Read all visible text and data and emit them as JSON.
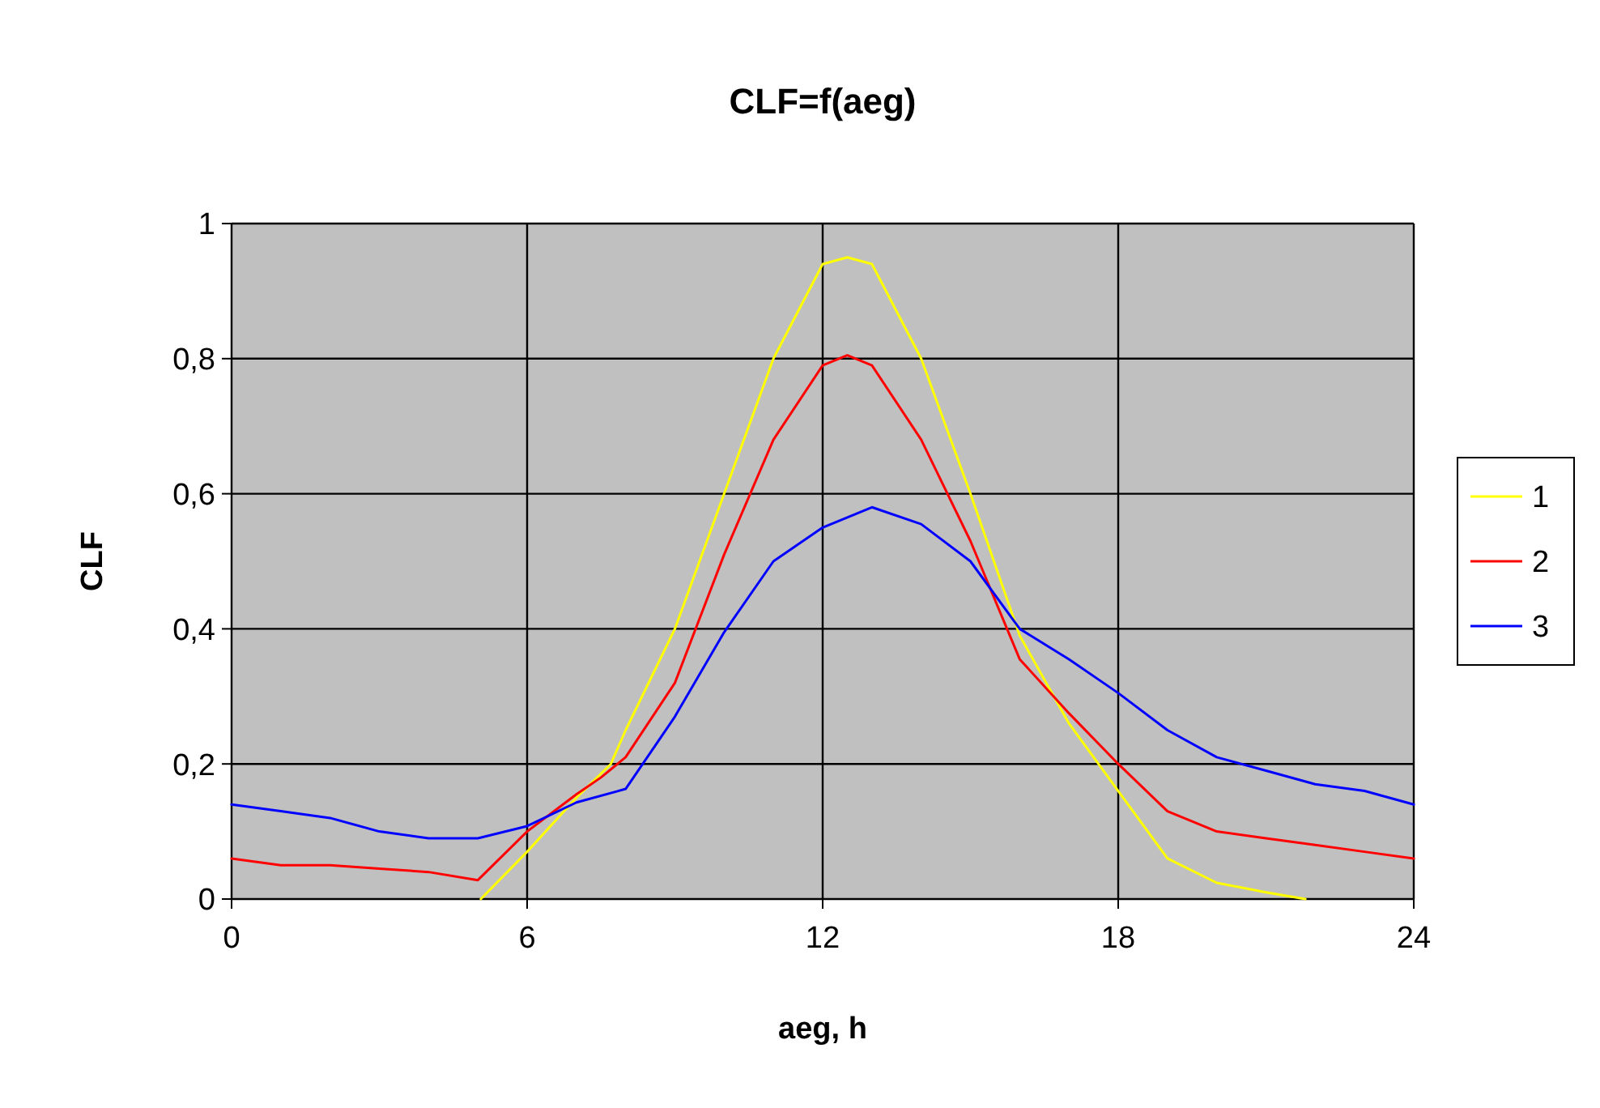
{
  "chart_data": {
    "type": "line",
    "title": "CLF=f(aeg)",
    "xlabel": "aeg, h",
    "ylabel": "CLF",
    "xlim": [
      0,
      24
    ],
    "xticks": [
      0,
      6,
      12,
      18,
      24
    ],
    "ylim": [
      0,
      1
    ],
    "yticks": [
      0,
      {
        "value": 0.2,
        "label": "0,2"
      },
      {
        "value": 0.4,
        "label": "0,4"
      },
      {
        "value": 0.6,
        "label": "0,6"
      },
      {
        "value": 0.8,
        "label": "0,8"
      },
      1
    ],
    "grid": true,
    "legend": "right",
    "marker": "none",
    "line_style": "solid",
    "series": [
      {
        "name": "1",
        "color": "#ffff00",
        "x": [
          5.06,
          6,
          7,
          7.7,
          8,
          9,
          10,
          11,
          12,
          12.5,
          13,
          14,
          15,
          16,
          17,
          18,
          19,
          20,
          21,
          21.8
        ],
        "values": [
          0,
          0.07,
          0.15,
          0.2,
          0.25,
          0.4,
          0.6,
          0.8,
          0.94,
          0.95,
          0.94,
          0.8,
          0.6,
          0.39,
          0.26,
          0.16,
          0.06,
          0.024,
          0.01,
          0
        ]
      },
      {
        "name": "2",
        "color": "#ff0000",
        "x": [
          0,
          1,
          2,
          3,
          4,
          5,
          6,
          7,
          7.5,
          8,
          9,
          10,
          11,
          12,
          12.5,
          13,
          14,
          15,
          16,
          17,
          18,
          19,
          20,
          21,
          22,
          23,
          24
        ],
        "values": [
          0.06,
          0.05,
          0.05,
          0.045,
          0.04,
          0.028,
          0.1,
          0.155,
          0.18,
          0.21,
          0.32,
          0.51,
          0.68,
          0.79,
          0.805,
          0.79,
          0.68,
          0.53,
          0.355,
          0.275,
          0.2,
          0.13,
          0.1,
          0.09,
          0.08,
          0.07,
          0.06
        ]
      },
      {
        "name": "3",
        "color": "#0000ff",
        "x": [
          0,
          1,
          2,
          3,
          4,
          5,
          6,
          7,
          8,
          9,
          10,
          11,
          12,
          13,
          14,
          15,
          16,
          17,
          18,
          19,
          20,
          21,
          22,
          23,
          24
        ],
        "values": [
          0.14,
          0.13,
          0.12,
          0.1,
          0.09,
          0.09,
          0.108,
          0.143,
          0.163,
          0.27,
          0.395,
          0.5,
          0.55,
          0.58,
          0.555,
          0.5,
          0.4,
          0.355,
          0.305,
          0.25,
          0.21,
          0.19,
          0.17,
          0.16,
          0.14
        ]
      }
    ]
  }
}
